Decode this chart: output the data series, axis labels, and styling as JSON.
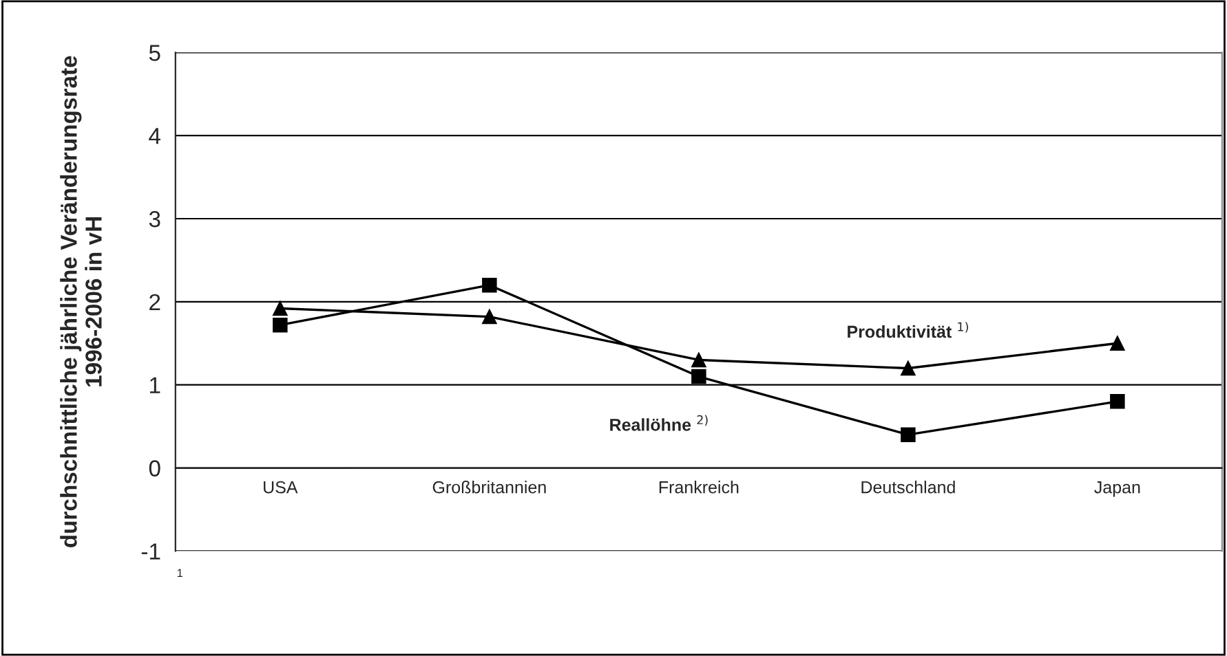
{
  "chart_data": {
    "type": "line",
    "ylabel": "durchschnittliche jährliche Veränderungsrate\n1996-2006 in vH",
    "categories": [
      "USA",
      "Großbritannien",
      "Frankreich",
      "Deutschland",
      "Japan"
    ],
    "series": [
      {
        "name": "Produktivität $^{1)}$",
        "color": "#000000",
        "marker": "triangle",
        "values": [
          1.92,
          1.82,
          1.3,
          1.2,
          1.5
        ]
      },
      {
        "name": "Reallöhne $^{2)}$",
        "color": "#000000",
        "marker": "square",
        "values": [
          1.72,
          2.2,
          1.1,
          0.4,
          0.8
        ]
      }
    ],
    "ylim": [
      -1,
      5
    ],
    "yticks": [
      -1,
      0,
      1,
      2,
      3,
      4,
      5
    ],
    "grid": "y",
    "legend": false,
    "line_style": "solid",
    "annotations": [
      "1"
    ]
  }
}
